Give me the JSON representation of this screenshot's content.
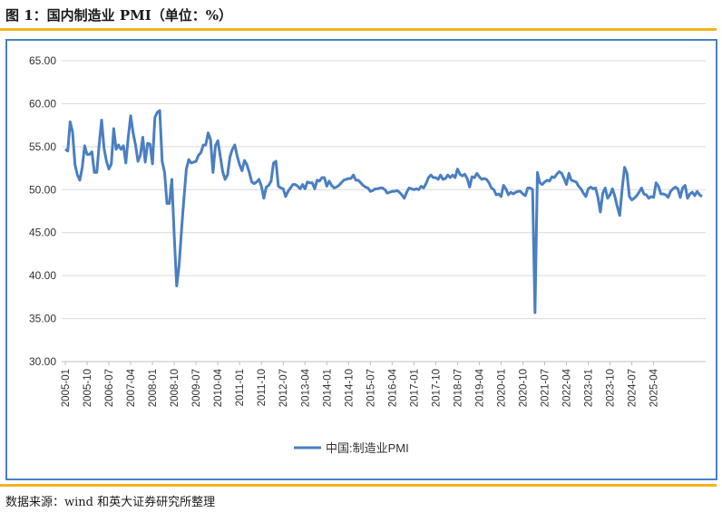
{
  "figure": {
    "title": "图 1：国内制造业 PMI（单位：%）",
    "source": "数据来源：wind 和英大证券研究所整理"
  },
  "colors": {
    "line": "#4a7fc1",
    "frame": "#4a80c8",
    "rule": "#f2b41a",
    "grid": "#d9d9d9"
  },
  "chart_data": {
    "type": "line",
    "title": "",
    "xlabel": "",
    "ylabel": "",
    "ylim": [
      30,
      65
    ],
    "yticks": [
      "30.00",
      "35.00",
      "40.00",
      "45.00",
      "50.00",
      "55.00",
      "60.00",
      "65.00"
    ],
    "xticks": [
      "2005-01",
      "2005-10",
      "2006-07",
      "2007-04",
      "2008-01",
      "2008-10",
      "2009-07",
      "2010-04",
      "2011-01",
      "2011-10",
      "2012-07",
      "2013-04",
      "2014-01",
      "2014-10",
      "2015-07",
      "2016-04",
      "2017-01",
      "2017-10",
      "2018-07",
      "2019-04",
      "2020-01",
      "2020-10",
      "2021-07",
      "2022-04",
      "2023-01",
      "2023-10",
      "2024-07",
      "2025-04"
    ],
    "grid": "horizontal",
    "legend": "bottom-center",
    "start": "2005-01",
    "series": [
      {
        "name": "中国:制造业PMI",
        "values": [
          54.7,
          54.5,
          57.9,
          56.7,
          52.9,
          51.7,
          51.1,
          52.6,
          55.1,
          54.1,
          54.1,
          54.4,
          52.0,
          52.0,
          55.3,
          58.1,
          54.8,
          53.3,
          52.4,
          53.0,
          57.1,
          54.7,
          55.2,
          54.7,
          55.1,
          53.1,
          56.1,
          58.6,
          56.6,
          55.2,
          53.3,
          54.0,
          56.1,
          53.2,
          55.4,
          55.3,
          53.0,
          58.4,
          59.0,
          59.2,
          53.3,
          52.0,
          48.4,
          48.4,
          51.2,
          44.6,
          38.8,
          41.2,
          45.3,
          49.0,
          52.4,
          53.5,
          53.1,
          53.2,
          53.3,
          54.0,
          54.3,
          55.2,
          55.2,
          56.6,
          55.8,
          52.0,
          55.1,
          55.7,
          53.9,
          52.1,
          51.2,
          51.7,
          53.8,
          54.7,
          55.2,
          53.9,
          52.9,
          52.2,
          53.4,
          52.9,
          52.0,
          50.9,
          50.7,
          50.9,
          51.2,
          50.4,
          49.0,
          50.3,
          50.5,
          51.0,
          53.1,
          53.3,
          50.4,
          50.2,
          50.1,
          49.2,
          49.8,
          50.2,
          50.6,
          50.6,
          50.4,
          50.1,
          50.6,
          50.1,
          50.9,
          50.8,
          50.8,
          50.1,
          51.1,
          51.0,
          51.4,
          51.4,
          50.4,
          51.0,
          50.5,
          50.2,
          50.3,
          50.5,
          50.8,
          51.1,
          51.2,
          51.3,
          51.3,
          51.7,
          51.1,
          51.1,
          50.8,
          50.5,
          50.3,
          50.2,
          49.8,
          49.9,
          50.1,
          50.1,
          50.2,
          50.2,
          50.0,
          49.6,
          49.7,
          49.8,
          49.8,
          49.9,
          49.7,
          49.4,
          49.0,
          49.7,
          50.2,
          50.1,
          50.0,
          50.1,
          50.0,
          50.4,
          50.2,
          50.7,
          51.4,
          51.7,
          51.4,
          51.4,
          51.2,
          51.7,
          51.2,
          51.3,
          51.7,
          51.4,
          51.7,
          51.4,
          52.4,
          51.8,
          51.6,
          51.8,
          51.3,
          50.3,
          51.5,
          51.4,
          51.9,
          51.5,
          51.2,
          51.3,
          51.2,
          50.8,
          50.2,
          50.0,
          49.4,
          49.5,
          49.2,
          50.5,
          50.1,
          49.4,
          49.7,
          49.5,
          49.7,
          49.8,
          49.8,
          49.5,
          49.3,
          50.2,
          50.2,
          50.0,
          35.7,
          52.0,
          50.8,
          50.6,
          50.9,
          51.1,
          51.0,
          51.5,
          51.4,
          51.8,
          52.1,
          51.9,
          51.3,
          50.6,
          51.9,
          51.1,
          51.0,
          50.9,
          50.4,
          50.1,
          49.6,
          49.2,
          50.1,
          50.3,
          50.1,
          50.2,
          49.1,
          47.4,
          49.6,
          50.2,
          49.0,
          49.4,
          50.1,
          49.2,
          48.0,
          47.0,
          50.1,
          52.6,
          51.9,
          49.2,
          48.8,
          49.0,
          49.3,
          49.7,
          50.2,
          49.5,
          49.4,
          49.0,
          49.2,
          49.1,
          50.8,
          50.4,
          49.5,
          49.5,
          49.4,
          49.1,
          49.8,
          50.1,
          50.3,
          50.1,
          49.1,
          50.2,
          50.5,
          49.0,
          49.5,
          49.7,
          49.3,
          49.8,
          49.4,
          49.2
        ]
      }
    ]
  }
}
